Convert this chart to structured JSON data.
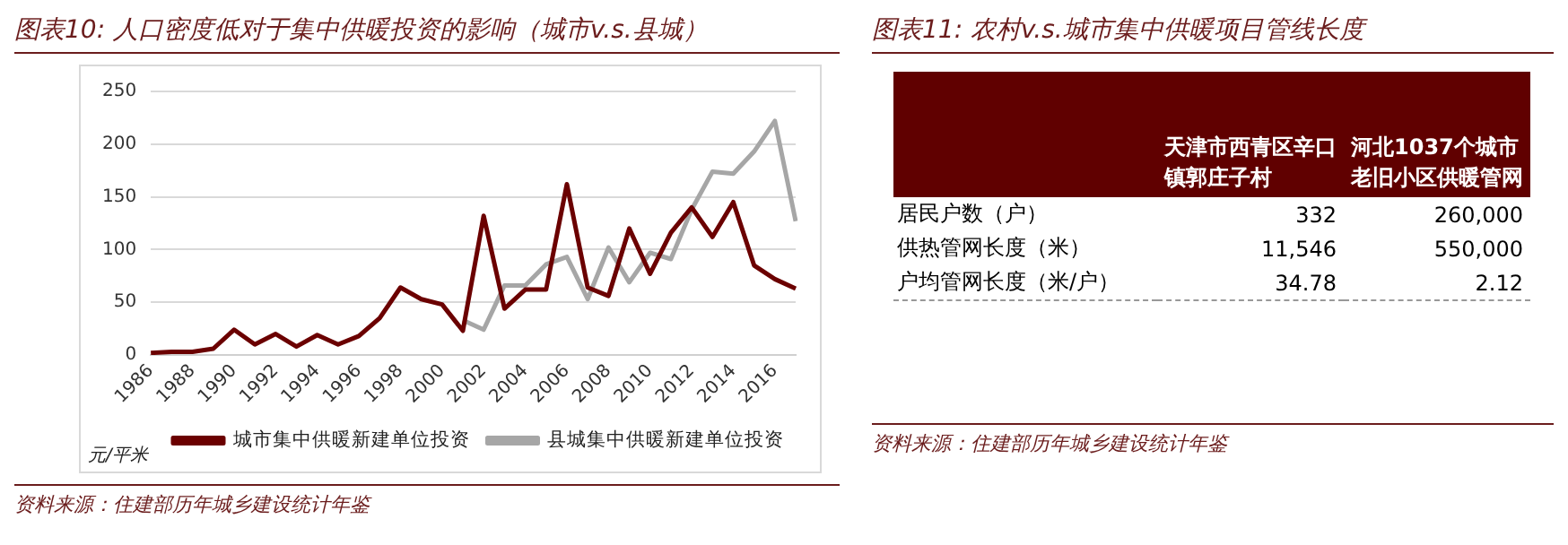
{
  "chart_data": [
    {
      "type": "line",
      "title": "图表10: 人口密度低对于集中供暖投资的影响（城市v.s.县城）",
      "ylabel": "元/平米",
      "categories": [
        "1986",
        null,
        "1988",
        null,
        "1990",
        null,
        "1992",
        null,
        "1994",
        null,
        "1996",
        null,
        "1998",
        null,
        "2000",
        null,
        "2002",
        null,
        "2004",
        null,
        "2006",
        null,
        "2008",
        null,
        "2010",
        null,
        "2012",
        null,
        "2014",
        null,
        "2016",
        null
      ],
      "series": [
        {
          "name": "城市集中供暖新建单位投资",
          "color": "#6b0000",
          "values": [
            2,
            3,
            3,
            6,
            24,
            10,
            20,
            8,
            19,
            10,
            18,
            35,
            64,
            53,
            48,
            23,
            132,
            44,
            62,
            62,
            162,
            64,
            56,
            120,
            77,
            116,
            140,
            112,
            145,
            85,
            72,
            63
          ]
        },
        {
          "name": "县城集中供暖新建单位投资",
          "color": "#a6a6a6",
          "values": [
            null,
            null,
            null,
            null,
            null,
            null,
            null,
            null,
            null,
            null,
            null,
            null,
            null,
            null,
            null,
            33,
            24,
            66,
            66,
            86,
            93,
            53,
            102,
            69,
            97,
            91,
            138,
            174,
            172,
            193,
            222,
            127
          ]
        }
      ],
      "ylim": [
        0,
        250
      ],
      "yticks": [
        0,
        50,
        100,
        150,
        200,
        250
      ],
      "grid": "y",
      "legend": "bottom",
      "marker": "none",
      "line_style": "solid",
      "annotations": [
        "资料来源：住建部历年城乡建设统计年鉴"
      ]
    },
    {
      "type": "other",
      "title": "图表11: 农村v.s.城市集中供暖项目管线长度",
      "categories": [
        "天津市西青区辛口镇郭庄子村",
        "河北1037个城市老旧小区供暖管网"
      ],
      "y_categories": [
        "居民户数（户）",
        "供热管网长度（米）",
        "户均管网长度（米/户）"
      ],
      "cell_labels": [
        [
          "332",
          "260,000"
        ],
        [
          "11,546",
          "550,000"
        ],
        [
          "34.78",
          "2.12"
        ]
      ],
      "annotations": [
        "资料来源：住建部历年城乡建设统计年鉴"
      ]
    }
  ]
}
